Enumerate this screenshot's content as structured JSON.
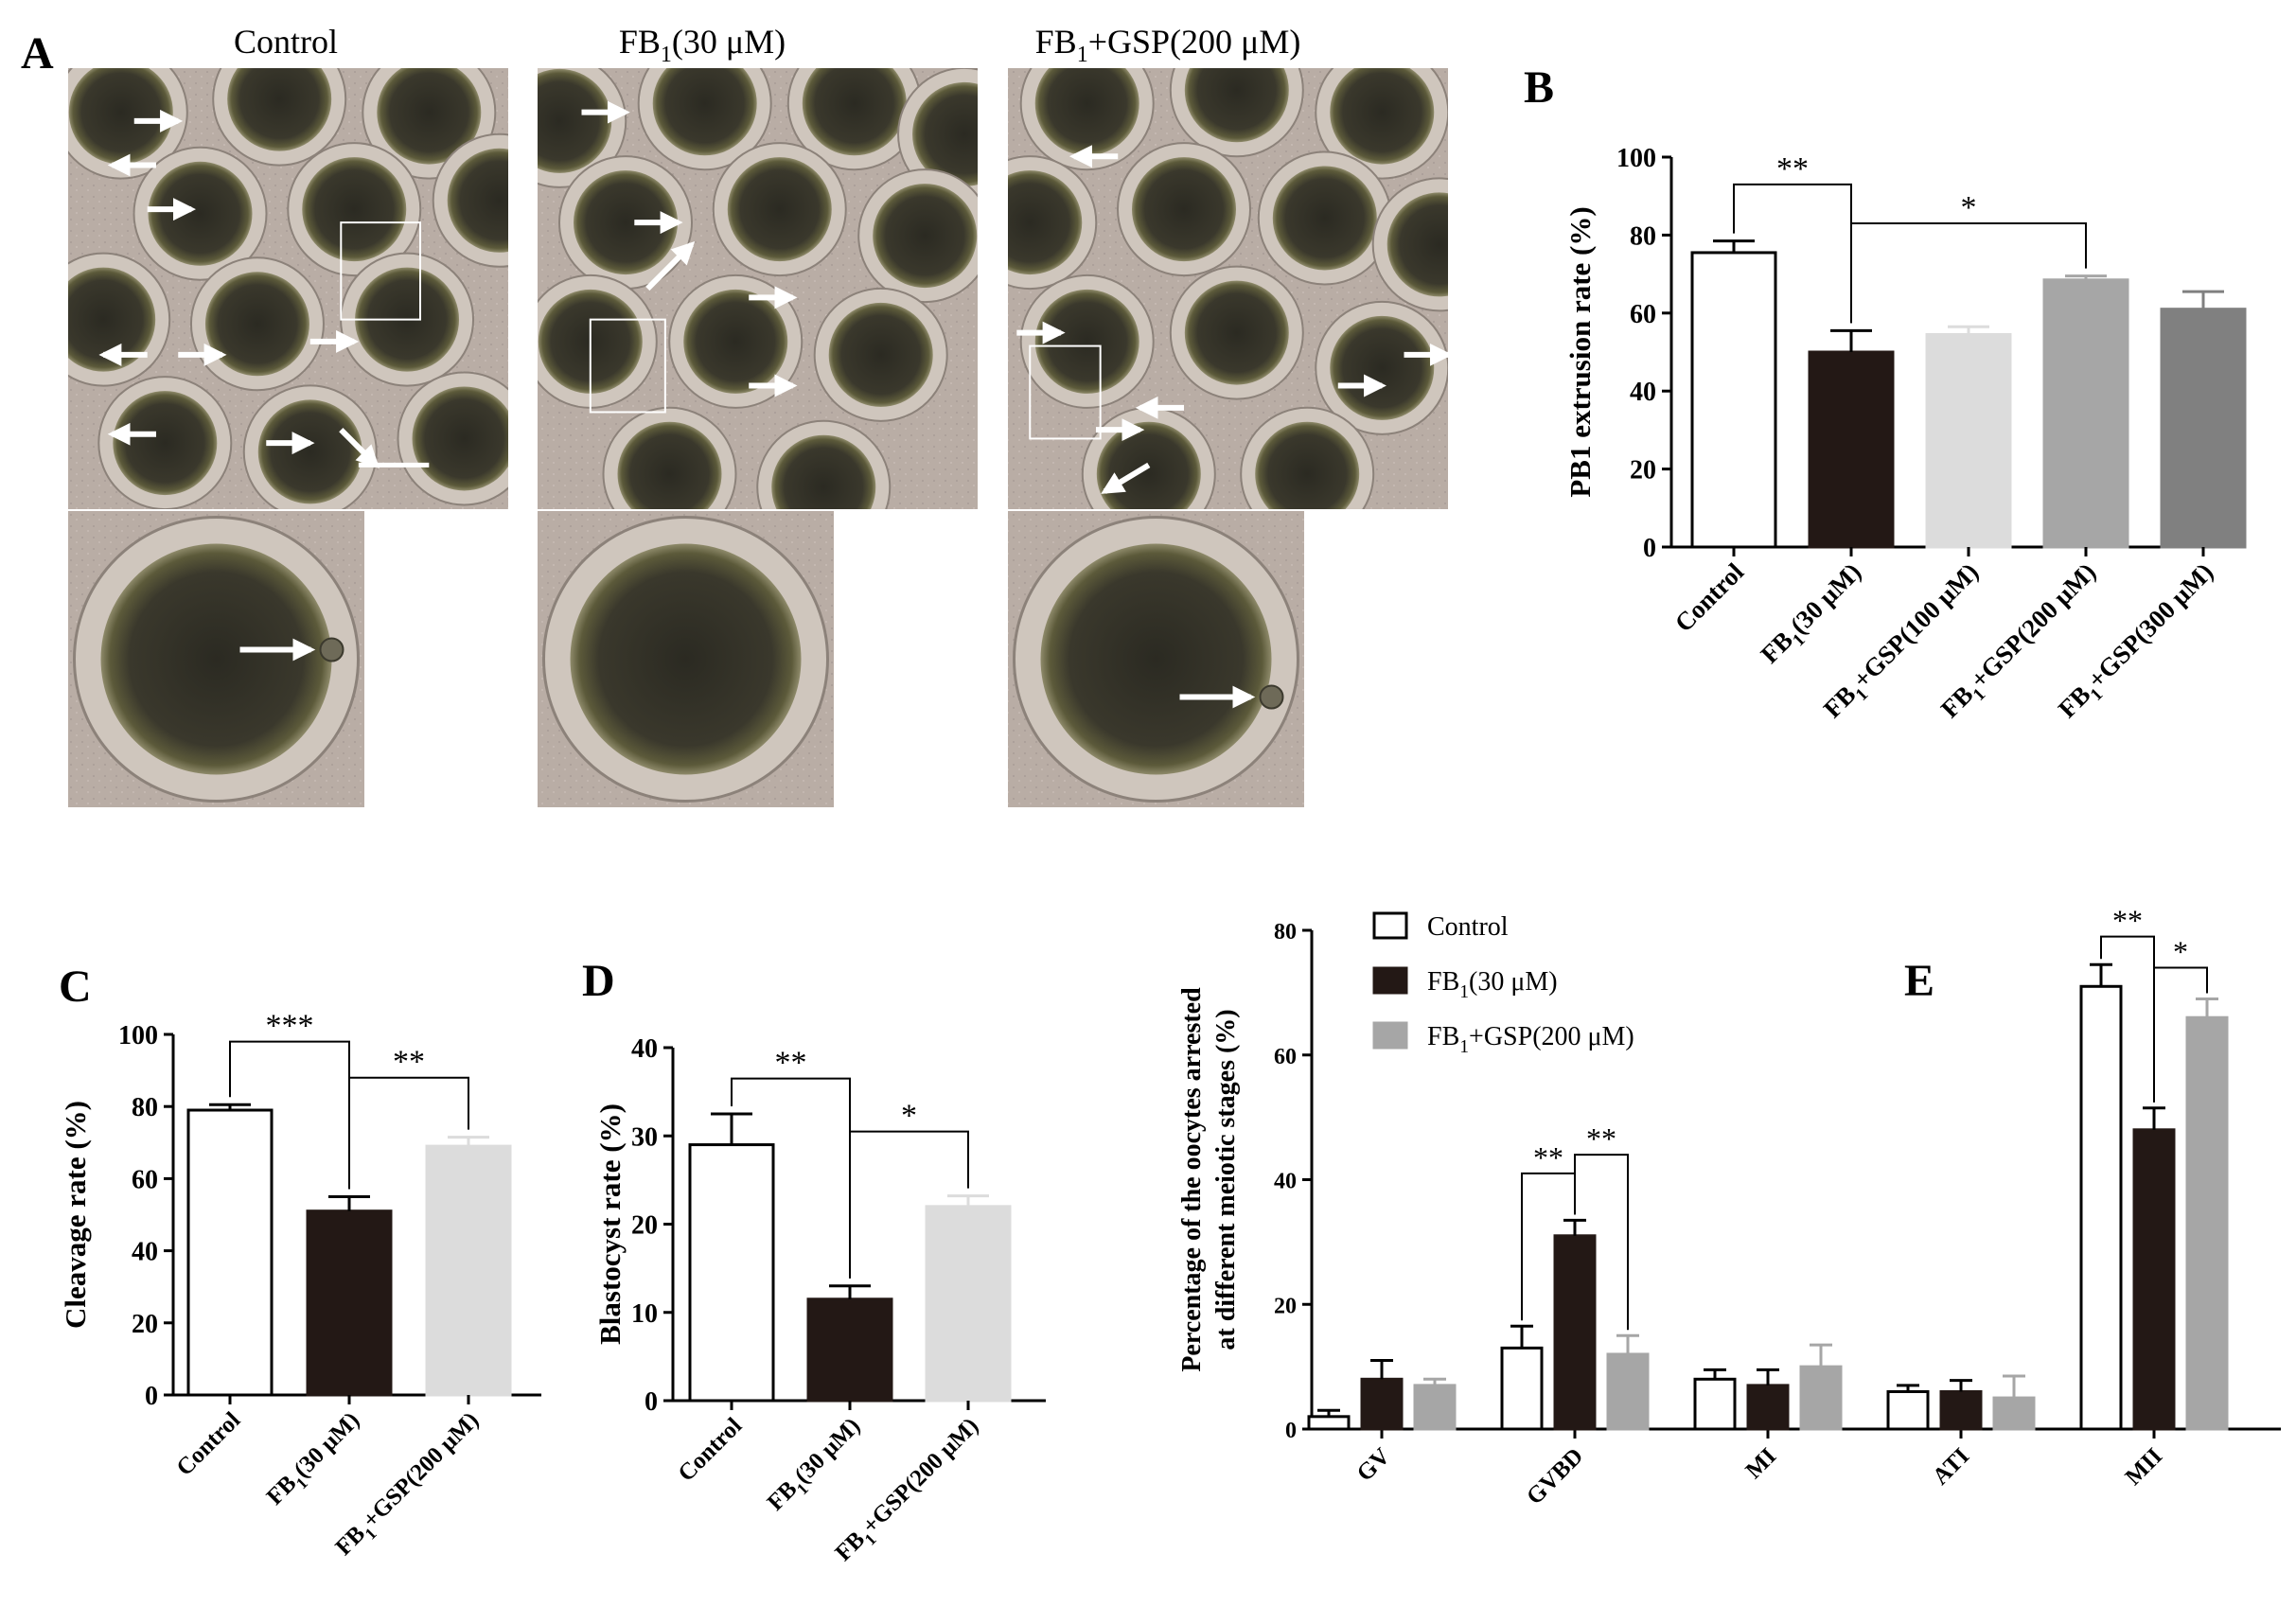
{
  "panel_letters": {
    "a": "A",
    "b": "B",
    "c": "C",
    "d": "D",
    "e": "E"
  },
  "micrographs": {
    "titles": [
      {
        "main": "Control",
        "sub": "",
        "tail": ""
      },
      {
        "main": "FB",
        "sub": "1",
        "tail": "(30 μM)"
      },
      {
        "main": "FB",
        "sub": "1",
        "tail": "+GSP(200 μM)"
      }
    ]
  },
  "colors": {
    "control": "#ffffff",
    "fb1": "#231815",
    "gsp100": "#dcdcdc",
    "gsp200": "#a6a6a6",
    "gsp300": "#808080",
    "axis": "#000000"
  },
  "chart_data": [
    {
      "id": "B",
      "type": "bar",
      "ylabel": "PB1 extrusion rate (%)",
      "ylim": [
        0,
        100
      ],
      "yticks": [
        "0",
        "20",
        "40",
        "60",
        "80",
        "100"
      ],
      "tick_values": [
        0,
        20,
        40,
        60,
        80,
        100
      ],
      "categories": [
        {
          "main": "Control",
          "sub": "",
          "tail": ""
        },
        {
          "main": "FB",
          "sub": "1",
          "tail": "(30 μM)"
        },
        {
          "main": "FB",
          "sub": "1",
          "tail": "+GSP(100 μM)"
        },
        {
          "main": "FB",
          "sub": "1",
          "tail": "+GSP(200 μM)"
        },
        {
          "main": "FB",
          "sub": "1",
          "tail": "+GSP(300 μM)"
        }
      ],
      "values": [
        75.5,
        50,
        54.5,
        68.5,
        61
      ],
      "errors": [
        3,
        5.5,
        2,
        1,
        4.5
      ],
      "bar_colors": [
        "control",
        "fb1",
        "gsp100",
        "gsp200",
        "gsp300"
      ],
      "significance": [
        {
          "from": 0,
          "to": 1,
          "label": "**",
          "y": 93
        },
        {
          "from": 1,
          "to": 3,
          "label": "*",
          "y": 83
        }
      ]
    },
    {
      "id": "C",
      "type": "bar",
      "ylabel": "Cleavage rate (%)",
      "ylim": [
        0,
        100
      ],
      "yticks": [
        "0",
        "20",
        "40",
        "60",
        "80",
        "100"
      ],
      "tick_values": [
        0,
        20,
        40,
        60,
        80,
        100
      ],
      "categories": [
        {
          "main": "Control",
          "sub": "",
          "tail": ""
        },
        {
          "main": "FB",
          "sub": "1",
          "tail": "(30 μM)"
        },
        {
          "main": "FB",
          "sub": "1",
          "tail": "+GSP(200 μM)"
        }
      ],
      "values": [
        79,
        51,
        69
      ],
      "errors": [
        1.5,
        4,
        2.5
      ],
      "bar_colors": [
        "control",
        "fb1",
        "gsp100"
      ],
      "significance": [
        {
          "from": 0,
          "to": 1,
          "label": "***",
          "y": 98
        },
        {
          "from": 1,
          "to": 2,
          "label": "**",
          "y": 88
        }
      ]
    },
    {
      "id": "D",
      "type": "bar",
      "ylabel": "Blastocyst rate (%)",
      "ylim": [
        0,
        40
      ],
      "yticks": [
        "0",
        "10",
        "20",
        "30",
        "40"
      ],
      "tick_values": [
        0,
        10,
        20,
        30,
        40
      ],
      "categories": [
        {
          "main": "Control",
          "sub": "",
          "tail": ""
        },
        {
          "main": "FB",
          "sub": "1",
          "tail": "(30 μM)"
        },
        {
          "main": "FB",
          "sub": "1",
          "tail": "+GSP(200 μM)"
        }
      ],
      "values": [
        29,
        11.5,
        22
      ],
      "errors": [
        3.5,
        1.5,
        1.2
      ],
      "bar_colors": [
        "control",
        "fb1",
        "gsp100"
      ],
      "significance": [
        {
          "from": 0,
          "to": 1,
          "label": "**",
          "y": 36.5
        },
        {
          "from": 1,
          "to": 2,
          "label": "*",
          "y": 30.5
        }
      ]
    },
    {
      "id": "E",
      "type": "bar",
      "ylabel_lines": [
        "Percentage of the oocytes arrested",
        "at different meiotic stages (%)"
      ],
      "ylim": [
        0,
        80
      ],
      "yticks": [
        "0",
        "20",
        "40",
        "60",
        "80"
      ],
      "tick_values": [
        0,
        20,
        40,
        60,
        80
      ],
      "categories": [
        "GV",
        "GVBD",
        "MI",
        "ATI",
        "MII"
      ],
      "series": [
        {
          "name": {
            "main": "Control",
            "sub": "",
            "tail": ""
          },
          "color": "control",
          "values": [
            2,
            13,
            8,
            6,
            71
          ],
          "errors": [
            1,
            3.5,
            1.5,
            1,
            3.5
          ]
        },
        {
          "name": {
            "main": "FB",
            "sub": "1",
            "tail": "(30 μM)"
          },
          "color": "fb1",
          "values": [
            8,
            31,
            7,
            6,
            48
          ],
          "errors": [
            3,
            2.5,
            2.5,
            1.8,
            3.5
          ]
        },
        {
          "name": {
            "main": "FB",
            "sub": "1",
            "tail": "+GSP(200 μM)"
          },
          "color": "gsp200",
          "values": [
            7,
            12,
            10,
            5,
            66
          ],
          "errors": [
            1,
            3,
            3.5,
            3.5,
            3
          ]
        }
      ],
      "legend": "top-left",
      "significance": [
        {
          "group": 1,
          "from": 0,
          "to": 1,
          "label": "**",
          "y": 41
        },
        {
          "group": 1,
          "from": 1,
          "to": 2,
          "label": "**",
          "y": 44
        },
        {
          "group": 4,
          "from": 0,
          "to": 1,
          "label": "**",
          "y": 79
        },
        {
          "group": 4,
          "from": 1,
          "to": 2,
          "label": "*",
          "y": 74
        }
      ]
    }
  ]
}
